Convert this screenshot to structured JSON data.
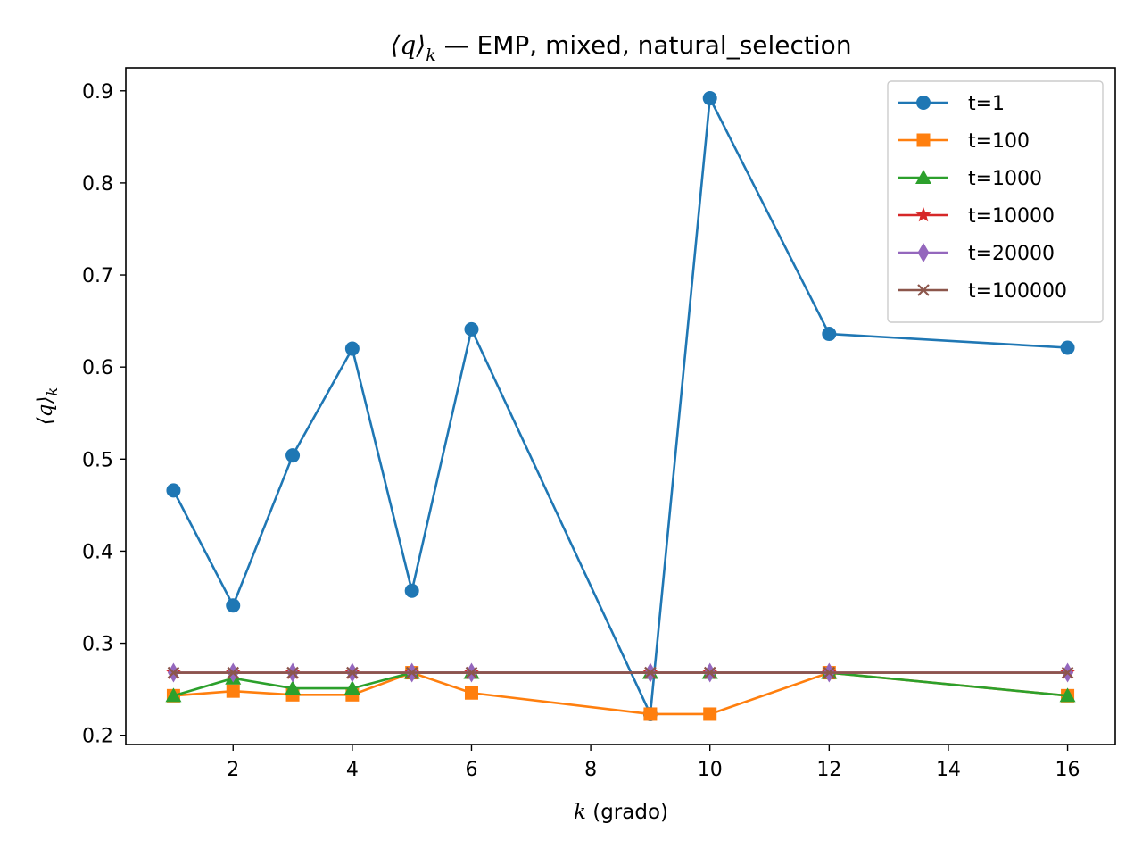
{
  "chart_data": {
    "type": "line",
    "title_prefix": "⟨q⟩",
    "title_sub": "k",
    "title_rest": " — EMP, mixed, natural_selection",
    "xlabel_var": "k",
    "xlabel_rest": " (grado)",
    "ylabel_prefix": "⟨q⟩",
    "ylabel_sub": "k",
    "xlim": [
      0.2,
      16.8
    ],
    "ylim": [
      0.19,
      0.925
    ],
    "xticks": [
      2,
      4,
      6,
      8,
      10,
      12,
      14,
      16
    ],
    "yticks": [
      0.2,
      0.3,
      0.4,
      0.5,
      0.6,
      0.7,
      0.8,
      0.9
    ],
    "grid": false,
    "legend_position": "top-right",
    "x": [
      1,
      2,
      3,
      4,
      5,
      6,
      9,
      10,
      12,
      16
    ],
    "series": [
      {
        "name": "t=1",
        "color": "#1f77b4",
        "marker": "circle",
        "values": [
          0.466,
          0.341,
          0.504,
          0.62,
          0.357,
          0.641,
          0.223,
          0.892,
          0.636,
          0.621
        ]
      },
      {
        "name": "t=100",
        "color": "#ff7f0e",
        "marker": "square",
        "values": [
          0.243,
          0.248,
          0.244,
          0.244,
          0.268,
          0.246,
          0.223,
          0.223,
          0.268,
          0.243
        ]
      },
      {
        "name": "t=1000",
        "color": "#2ca02c",
        "marker": "triangle",
        "values": [
          0.243,
          0.262,
          0.251,
          0.251,
          0.268,
          0.268,
          0.268,
          0.268,
          0.268,
          0.243
        ]
      },
      {
        "name": "t=10000",
        "color": "#d62728",
        "marker": "star",
        "values": [
          0.268,
          0.268,
          0.268,
          0.268,
          0.268,
          0.268,
          0.268,
          0.268,
          0.268,
          0.268
        ]
      },
      {
        "name": "t=20000",
        "color": "#9467bd",
        "marker": "diamond",
        "values": [
          0.268,
          0.268,
          0.268,
          0.268,
          0.268,
          0.268,
          0.268,
          0.268,
          0.268,
          0.268
        ]
      },
      {
        "name": "t=100000",
        "color": "#8c564b",
        "marker": "x",
        "values": [
          0.268,
          0.268,
          0.268,
          0.268,
          0.268,
          0.268,
          0.268,
          0.268,
          0.268,
          0.268
        ]
      }
    ]
  }
}
